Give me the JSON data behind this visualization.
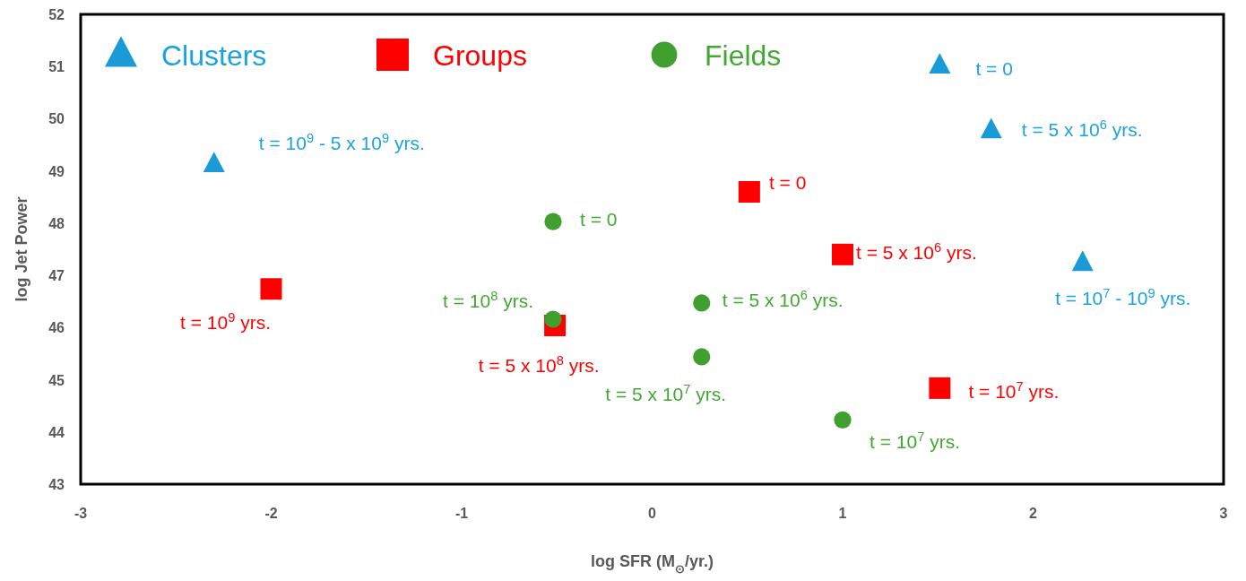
{
  "chart_data": {
    "type": "scatter",
    "xlabel": "log SFR (M$_{⊙}$/yr.)",
    "ylabel": "log Jet Power",
    "xlim": [
      -3,
      3
    ],
    "xticks": [
      -3,
      -2,
      -1,
      0,
      1,
      2,
      3
    ],
    "ylim": [
      43,
      52
    ],
    "yticks": [
      43,
      44,
      45,
      46,
      47,
      48,
      49,
      50,
      51,
      52
    ],
    "grid": false,
    "legend": "top left",
    "series": [
      {
        "name": "Clusters",
        "color": "#1a9ad6",
        "marker": "triangle",
        "x": [
          1.51,
          1.78,
          -2.3,
          2.26
        ],
        "values": [
          51.02,
          49.78,
          49.13,
          47.24
        ]
      },
      {
        "name": "Groups",
        "color": "#ff0000",
        "marker": "square",
        "x": [
          0.51,
          1.0,
          -2.0,
          -0.51,
          1.51
        ],
        "values": [
          48.6,
          47.4,
          46.74,
          46.04,
          44.84
        ]
      },
      {
        "name": "Fields",
        "color": "#3f9f2f",
        "marker": "circle",
        "x": [
          -0.52,
          -0.52,
          0.26,
          0.26,
          1.0
        ],
        "values": [
          48.03,
          46.16,
          46.47,
          45.44,
          44.23
        ]
      }
    ],
    "annotations": [
      {
        "text": "t = 0",
        "x": 1.51,
        "y": 51.02
      },
      {
        "text": "t = 5 x 10$^{6}$ yrs.",
        "x": 1.78,
        "y": 49.78
      },
      {
        "text": "t =  10$^{9}$ - 5 x 10$^{9}$ yrs.",
        "x": -2.3,
        "y": 49.13
      },
      {
        "text": "t = 10$^{7}$ - 10$^{9}$ yrs.",
        "x": 2.26,
        "y": 47.24
      },
      {
        "text": "t = 0",
        "x": 0.51,
        "y": 48.6
      },
      {
        "text": "t = 5 x 10$^{6}$ yrs.",
        "x": 1.0,
        "y": 47.4
      },
      {
        "text": "t = 10$^{9}$ yrs.",
        "x": -2.0,
        "y": 46.74
      },
      {
        "text": "t = 5 x 10$^{8}$ yrs.",
        "x": -0.51,
        "y": 46.04
      },
      {
        "text": "t =  10$^{7}$ yrs.",
        "x": 1.51,
        "y": 44.84
      },
      {
        "text": "t = 0",
        "x": -0.52,
        "y": 48.03
      },
      {
        "text": "t = 10$^{8}$ yrs.",
        "x": -0.52,
        "y": 46.16
      },
      {
        "text": "t =  5 x 10$^{6}$ yrs.",
        "x": 0.26,
        "y": 46.47
      },
      {
        "text": "t = 5 x 10$^{7}$ yrs.",
        "x": 0.26,
        "y": 45.44
      },
      {
        "text": "t = 10$^{7}$ yrs.",
        "x": 1.0,
        "y": 44.23
      }
    ]
  }
}
